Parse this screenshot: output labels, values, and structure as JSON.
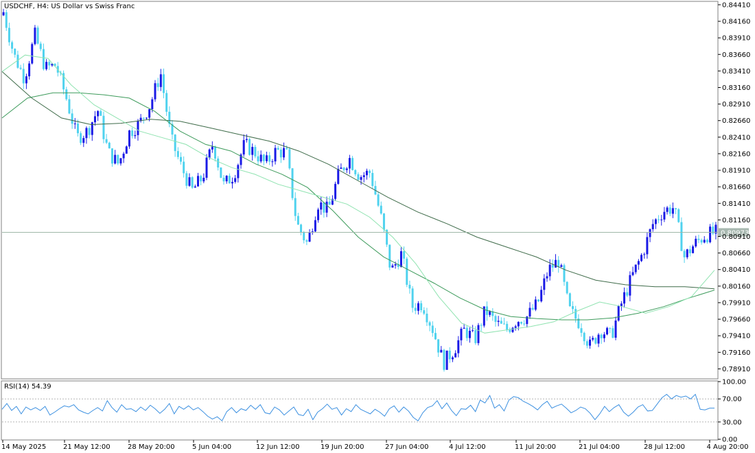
{
  "header": {
    "title": "USDCHF, H4:  US Dollar vs Swiss Franc"
  },
  "colors": {
    "bull": "#1a1ae6",
    "bear": "#4fd2ee",
    "ma_fast": "#8fe3b0",
    "ma_mid": "#3c9a5a",
    "ma_slow": "#3d6a48",
    "rsi_line": "#3a8fe0",
    "current_line": "#9fb7a8",
    "frame": "#7f7f7f"
  },
  "chart_data": [
    {
      "type": "candlestick",
      "symbol": "USDCHF",
      "timeframe": "H4",
      "title": "USDCHF, H4:  US Dollar vs Swiss Franc",
      "current_price": 0.80973,
      "current_price_label": "0.80973",
      "ylim": [
        0.7879,
        0.8443
      ],
      "y_ticks": [
        "0.84410",
        "0.84160",
        "0.83910",
        "0.83660",
        "0.83410",
        "0.83160",
        "0.82910",
        "0.82660",
        "0.82410",
        "0.82160",
        "0.81910",
        "0.81660",
        "0.81410",
        "0.81160",
        "0.80910",
        "0.80660",
        "0.80410",
        "0.80160",
        "0.79910",
        "0.79660",
        "0.79410",
        "0.79160",
        "0.78910"
      ],
      "x_labels": [
        "14 May 2025",
        "21 May 12:00",
        "28 May 20:00",
        "5 Jun 04:00",
        "12 Jun 12:00",
        "19 Jun 20:00",
        "27 Jun 04:00",
        "4 Jul 12:00",
        "11 Jul 20:00",
        "21 Jul 04:00",
        "28 Jul 12:00",
        "4 Aug 20:00"
      ],
      "close_path": [
        0.843,
        0.8365,
        0.833,
        0.8395,
        0.8345,
        0.835,
        0.83,
        0.824,
        0.825,
        0.8282,
        0.8218,
        0.82,
        0.8248,
        0.8262,
        0.829,
        0.8338,
        0.8238,
        0.8195,
        0.816,
        0.818,
        0.8232,
        0.8168,
        0.8185,
        0.823,
        0.8218,
        0.82,
        0.822,
        0.8218,
        0.811,
        0.808,
        0.8142,
        0.813,
        0.8185,
        0.821,
        0.8182,
        0.8188,
        0.8123,
        0.8038,
        0.8065,
        0.7985,
        0.799,
        0.795,
        0.79,
        0.792,
        0.795,
        0.7935,
        0.798,
        0.796,
        0.795,
        0.7965,
        0.797,
        0.799,
        0.804,
        0.8055,
        0.798,
        0.796,
        0.7925,
        0.795,
        0.794,
        0.799,
        0.803,
        0.8065,
        0.811,
        0.813,
        0.8135,
        0.806,
        0.808,
        0.8093,
        0.8097
      ],
      "ma_fast": [
        0.834,
        0.8365,
        0.836,
        0.832,
        0.829,
        0.827,
        0.825,
        0.824,
        0.823,
        0.821,
        0.8195,
        0.8185,
        0.817,
        0.816,
        0.815,
        0.814,
        0.812,
        0.809,
        0.805,
        0.8,
        0.796,
        0.7945,
        0.795,
        0.7955,
        0.7962,
        0.7978,
        0.7992,
        0.7985,
        0.7975,
        0.7985,
        0.8,
        0.804
      ],
      "ma_mid": [
        0.827,
        0.83,
        0.8308,
        0.8308,
        0.8305,
        0.83,
        0.828,
        0.825,
        0.823,
        0.822,
        0.82,
        0.8185,
        0.8165,
        0.813,
        0.809,
        0.806,
        0.804,
        0.802,
        0.7998,
        0.798,
        0.797,
        0.7967,
        0.7965,
        0.7965,
        0.7968,
        0.7975,
        0.7985,
        0.7998,
        0.801
      ],
      "ma_slow": [
        0.834,
        0.83,
        0.827,
        0.826,
        0.8262,
        0.8268,
        0.8265,
        0.8255,
        0.8245,
        0.8235,
        0.822,
        0.82,
        0.8175,
        0.815,
        0.8128,
        0.811,
        0.809,
        0.8075,
        0.806,
        0.804,
        0.8025,
        0.8018,
        0.8015,
        0.8015,
        0.8012
      ]
    },
    {
      "type": "line",
      "indicator": "RSI",
      "label": "RSI(14) 54.39",
      "period": 14,
      "last_value": 54.39,
      "ylim": [
        0,
        100
      ],
      "y_ticks": [
        "100.00",
        "70.00",
        "30.00",
        "0.00"
      ],
      "levels": [
        70,
        30
      ],
      "values": [
        52,
        62,
        50,
        57,
        44,
        56,
        51,
        55,
        50,
        57,
        42,
        47,
        53,
        58,
        56,
        60,
        51,
        47,
        44,
        50,
        55,
        49,
        67,
        55,
        47,
        60,
        52,
        53,
        48,
        56,
        50,
        59,
        53,
        45,
        52,
        62,
        44,
        57,
        52,
        58,
        51,
        55,
        48,
        40,
        35,
        39,
        32,
        48,
        55,
        46,
        53,
        50,
        59,
        52,
        60,
        46,
        44,
        56,
        51,
        42,
        49,
        56,
        43,
        41,
        52,
        34,
        47,
        53,
        61,
        52,
        55,
        42,
        53,
        48,
        60,
        52,
        48,
        44,
        52,
        47,
        40,
        53,
        58,
        47,
        56,
        49,
        38,
        32,
        46,
        55,
        58,
        67,
        53,
        63,
        50,
        41,
        53,
        52,
        59,
        48,
        68,
        63,
        76,
        54,
        60,
        49,
        68,
        74,
        72,
        66,
        62,
        57,
        51,
        60,
        66,
        54,
        58,
        61,
        54,
        46,
        50,
        56,
        53,
        45,
        34,
        44,
        57,
        48,
        55,
        60,
        47,
        40,
        47,
        56,
        60,
        49,
        50,
        61,
        72,
        78,
        70,
        76,
        73,
        75,
        70,
        78,
        52,
        51,
        54,
        54
      ]
    }
  ]
}
